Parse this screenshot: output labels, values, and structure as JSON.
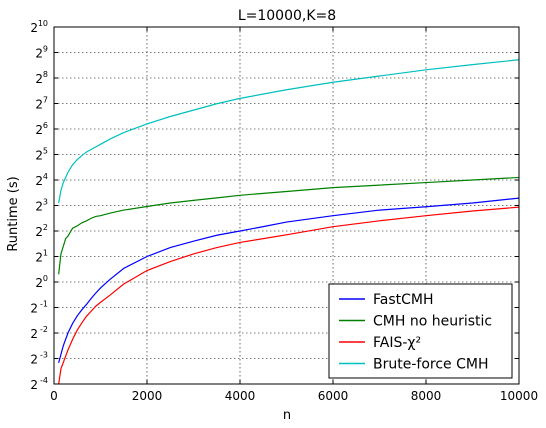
{
  "chart_data": {
    "type": "line",
    "title": "L=10000,K=8",
    "xlabel": "n",
    "ylabel": "Runtime (s)",
    "xlim": [
      0,
      10000
    ],
    "ylim_log2": [
      -4,
      10
    ],
    "y_scale": "log2",
    "grid": true,
    "legend_placement": "bottom-right",
    "x_ticks": [
      0,
      2000,
      4000,
      6000,
      8000,
      10000
    ],
    "y_ticks": [
      {
        "base": "2",
        "exp": "-4",
        "value": -4
      },
      {
        "base": "2",
        "exp": "-3",
        "value": -3
      },
      {
        "base": "2",
        "exp": "-2",
        "value": -2
      },
      {
        "base": "2",
        "exp": "-1",
        "value": -1
      },
      {
        "base": "2",
        "exp": "0",
        "value": 0
      },
      {
        "base": "2",
        "exp": "1",
        "value": 1
      },
      {
        "base": "2",
        "exp": "2",
        "value": 2
      },
      {
        "base": "2",
        "exp": "3",
        "value": 3
      },
      {
        "base": "2",
        "exp": "4",
        "value": 4
      },
      {
        "base": "2",
        "exp": "5",
        "value": 5
      },
      {
        "base": "2",
        "exp": "6",
        "value": 6
      },
      {
        "base": "2",
        "exp": "7",
        "value": 7
      },
      {
        "base": "2",
        "exp": "8",
        "value": 8
      },
      {
        "base": "2",
        "exp": "9",
        "value": 9
      },
      {
        "base": "2",
        "exp": "10",
        "value": 10
      }
    ],
    "series": [
      {
        "name": "FastCMH",
        "color": "#0000ff",
        "x": [
          100,
          200,
          300,
          400,
          500,
          600,
          700,
          800,
          900,
          1000,
          1200,
          1500,
          2000,
          2500,
          3000,
          3500,
          4000,
          4500,
          5000,
          6000,
          7000,
          8000,
          9000,
          10000
        ],
        "y": [
          0.111,
          0.177,
          0.25,
          0.324,
          0.399,
          0.471,
          0.545,
          0.64,
          0.741,
          0.85,
          1.069,
          1.449,
          2.0,
          2.549,
          3.031,
          3.564,
          4.0,
          4.503,
          5.098,
          6.063,
          7.062,
          7.727,
          8.57,
          9.781
        ]
      },
      {
        "name": "CMH no heuristic",
        "color": "#008000",
        "x": [
          100,
          150,
          200,
          250,
          300,
          400,
          500,
          600,
          700,
          800,
          900,
          1000,
          1200,
          1500,
          2000,
          2500,
          3000,
          3500,
          4000,
          5000,
          6000,
          7000,
          8000,
          9000,
          10000
        ],
        "y": [
          1.231,
          2.158,
          2.639,
          3.249,
          3.482,
          4.317,
          4.595,
          5.0,
          5.278,
          5.657,
          5.94,
          6.063,
          6.498,
          7.063,
          7.781,
          8.57,
          9.19,
          9.849,
          10.556,
          11.713,
          12.996,
          13.929,
          14.929,
          16.0,
          17.148
        ]
      },
      {
        "name": "FAIS-χ²",
        "color": "#ff0000",
        "x": [
          100,
          150,
          200,
          300,
          400,
          500,
          600,
          700,
          800,
          900,
          1000,
          1200,
          1500,
          2000,
          2500,
          3000,
          3500,
          4000,
          4500,
          5000,
          6000,
          7000,
          8000,
          9000,
          10000
        ],
        "y": [
          0.0625,
          0.0947,
          0.1121,
          0.1575,
          0.2102,
          0.2707,
          0.3299,
          0.3949,
          0.4529,
          0.5192,
          0.5743,
          0.6964,
          0.946,
          1.366,
          1.7411,
          2.1436,
          2.5491,
          2.9282,
          3.249,
          3.605,
          4.4999,
          5.278,
          6.0629,
          6.8938,
          7.6472
        ]
      },
      {
        "name": "Brute-force CMH",
        "color": "#00bfbf",
        "x": [
          100,
          150,
          200,
          250,
          300,
          400,
          500,
          600,
          700,
          800,
          900,
          1000,
          1200,
          1500,
          2000,
          2500,
          3000,
          3500,
          4000,
          5000,
          6000,
          7000,
          8000,
          9000,
          10000
        ],
        "y": [
          8.57,
          12.13,
          14.93,
          17.15,
          19.7,
          24.25,
          27.86,
          31.12,
          34.3,
          36.76,
          39.4,
          42.22,
          48.5,
          58.08,
          73.52,
          89.88,
          106.89,
          127.12,
          147.03,
          186.1,
          228.07,
          270.23,
          320.0,
          368.17,
          420.45
        ]
      }
    ]
  }
}
